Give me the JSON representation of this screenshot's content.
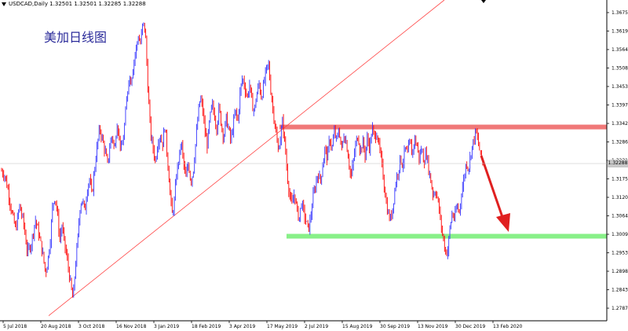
{
  "header": {
    "symbol_line": "USDCAD,Daily  1.32501 1.32501 1.32285 1.32288"
  },
  "title_cn": "美加日线图",
  "current_price": "1.32288",
  "colors": {
    "bull": "#3333ff",
    "bear": "#ff0000",
    "resistance_zone": "#f07878",
    "support_zone": "#88f088",
    "trendline": "#ff4444",
    "arrow": "#e02020"
  },
  "chart_data": {
    "type": "candlestick",
    "y_ticks": [
      "1.36750",
      "1.36195",
      "1.35640",
      "1.35085",
      "1.34530",
      "1.33975",
      "1.33420",
      "1.32865",
      "1.32310",
      "1.31755",
      "1.31200",
      "1.30645",
      "1.30090",
      "1.29535",
      "1.28980",
      "1.28430",
      "1.27875"
    ],
    "x_ticks": [
      "5 Jul 2018",
      "20 Aug 2018",
      "3 Oct 2018",
      "16 Nov 2018",
      "3 Jan 2019",
      "18 Feb 2019",
      "3 Apr 2019",
      "17 May 2019",
      "2 Jul 2019",
      "15 Aug 2019",
      "30 Sep 2019",
      "13 Nov 2019",
      "30 Dec 2019",
      "13 Feb 2020"
    ],
    "ylim": [
      1.276,
      1.369
    ],
    "close_path": [
      [
        0,
        1.321
      ],
      [
        6,
        1.319
      ],
      [
        10,
        1.315
      ],
      [
        15,
        1.308
      ],
      [
        20,
        1.303
      ],
      [
        25,
        1.31
      ],
      [
        30,
        1.305
      ],
      [
        35,
        1.296
      ],
      [
        40,
        1.299
      ],
      [
        45,
        1.306
      ],
      [
        50,
        1.301
      ],
      [
        55,
        1.295
      ],
      [
        58,
        1.29
      ],
      [
        61,
        1.294
      ],
      [
        64,
        1.3
      ],
      [
        67,
        1.31
      ],
      [
        70,
        1.313
      ],
      [
        73,
        1.308
      ],
      [
        76,
        1.3
      ],
      [
        79,
        1.304
      ],
      [
        82,
        1.299
      ],
      [
        85,
        1.295
      ],
      [
        88,
        1.29
      ],
      [
        91,
        1.285
      ],
      [
        93,
        1.282
      ],
      [
        96,
        1.292
      ],
      [
        99,
        1.3
      ],
      [
        102,
        1.31
      ],
      [
        105,
        1.312
      ],
      [
        108,
        1.308
      ],
      [
        111,
        1.315
      ],
      [
        114,
        1.318
      ],
      [
        117,
        1.313
      ],
      [
        120,
        1.32
      ],
      [
        124,
        1.328
      ],
      [
        127,
        1.333
      ],
      [
        130,
        1.33
      ],
      [
        134,
        1.326
      ],
      [
        137,
        1.322
      ],
      [
        140,
        1.328
      ],
      [
        143,
        1.331
      ],
      [
        146,
        1.326
      ],
      [
        149,
        1.335
      ],
      [
        152,
        1.33
      ],
      [
        155,
        1.326
      ],
      [
        158,
        1.332
      ],
      [
        161,
        1.34
      ],
      [
        164,
        1.348
      ],
      [
        167,
        1.347
      ],
      [
        170,
        1.352
      ],
      [
        173,
        1.356
      ],
      [
        176,
        1.36
      ],
      [
        179,
        1.358
      ],
      [
        182,
        1.364
      ],
      [
        185,
        1.362
      ],
      [
        187,
        1.352
      ],
      [
        189,
        1.342
      ],
      [
        192,
        1.331
      ],
      [
        195,
        1.327
      ],
      [
        198,
        1.323
      ],
      [
        201,
        1.329
      ],
      [
        204,
        1.331
      ],
      [
        207,
        1.328
      ],
      [
        210,
        1.334
      ],
      [
        213,
        1.325
      ],
      [
        216,
        1.316
      ],
      [
        219,
        1.307
      ],
      [
        222,
        1.311
      ],
      [
        225,
        1.32
      ],
      [
        228,
        1.324
      ],
      [
        231,
        1.329
      ],
      [
        234,
        1.322
      ],
      [
        237,
        1.318
      ],
      [
        240,
        1.323
      ],
      [
        243,
        1.317
      ],
      [
        246,
        1.32
      ],
      [
        249,
        1.328
      ],
      [
        252,
        1.336
      ],
      [
        255,
        1.342
      ],
      [
        258,
        1.339
      ],
      [
        261,
        1.332
      ],
      [
        264,
        1.328
      ],
      [
        267,
        1.335
      ],
      [
        270,
        1.34
      ],
      [
        273,
        1.337
      ],
      [
        276,
        1.333
      ],
      [
        279,
        1.339
      ],
      [
        282,
        1.334
      ],
      [
        285,
        1.33
      ],
      [
        288,
        1.336
      ],
      [
        291,
        1.333
      ],
      [
        294,
        1.329
      ],
      [
        297,
        1.334
      ],
      [
        300,
        1.338
      ],
      [
        303,
        1.335
      ],
      [
        306,
        1.344
      ],
      [
        309,
        1.348
      ],
      [
        312,
        1.345
      ],
      [
        315,
        1.342
      ],
      [
        318,
        1.346
      ],
      [
        321,
        1.34
      ],
      [
        324,
        1.338
      ],
      [
        327,
        1.343
      ],
      [
        330,
        1.346
      ],
      [
        333,
        1.342
      ],
      [
        336,
        1.346
      ],
      [
        339,
        1.35
      ],
      [
        342,
        1.352
      ],
      [
        345,
        1.344
      ],
      [
        348,
        1.338
      ],
      [
        351,
        1.333
      ],
      [
        354,
        1.326
      ],
      [
        357,
        1.33
      ],
      [
        360,
        1.335
      ],
      [
        363,
        1.328
      ],
      [
        366,
        1.319
      ],
      [
        369,
        1.313
      ],
      [
        372,
        1.31
      ],
      [
        375,
        1.314
      ],
      [
        378,
        1.309
      ],
      [
        381,
        1.306
      ],
      [
        384,
        1.311
      ],
      [
        387,
        1.308
      ],
      [
        390,
        1.305
      ],
      [
        393,
        1.303
      ],
      [
        396,
        1.307
      ],
      [
        399,
        1.313
      ],
      [
        402,
        1.316
      ],
      [
        405,
        1.32
      ],
      [
        408,
        1.317
      ],
      [
        411,
        1.322
      ],
      [
        414,
        1.327
      ],
      [
        417,
        1.324
      ],
      [
        420,
        1.33
      ],
      [
        423,
        1.327
      ],
      [
        426,
        1.332
      ],
      [
        429,
        1.329
      ],
      [
        432,
        1.333
      ],
      [
        435,
        1.326
      ],
      [
        438,
        1.331
      ],
      [
        441,
        1.329
      ],
      [
        444,
        1.324
      ],
      [
        447,
        1.318
      ],
      [
        450,
        1.323
      ],
      [
        453,
        1.328
      ],
      [
        456,
        1.331
      ],
      [
        459,
        1.326
      ],
      [
        462,
        1.329
      ],
      [
        465,
        1.325
      ],
      [
        468,
        1.33
      ],
      [
        471,
        1.327
      ],
      [
        474,
        1.333
      ],
      [
        477,
        1.33
      ],
      [
        480,
        1.332
      ],
      [
        483,
        1.327
      ],
      [
        486,
        1.323
      ],
      [
        489,
        1.317
      ],
      [
        492,
        1.311
      ],
      [
        495,
        1.307
      ],
      [
        498,
        1.306
      ],
      [
        501,
        1.311
      ],
      [
        504,
        1.317
      ],
      [
        507,
        1.32
      ],
      [
        510,
        1.324
      ],
      [
        513,
        1.322
      ],
      [
        516,
        1.327
      ],
      [
        519,
        1.325
      ],
      [
        522,
        1.329
      ],
      [
        525,
        1.325
      ],
      [
        528,
        1.33
      ],
      [
        531,
        1.328
      ],
      [
        534,
        1.324
      ],
      [
        537,
        1.327
      ],
      [
        540,
        1.323
      ],
      [
        543,
        1.326
      ],
      [
        546,
        1.321
      ],
      [
        549,
        1.317
      ],
      [
        552,
        1.313
      ],
      [
        555,
        1.315
      ],
      [
        558,
        1.311
      ],
      [
        561,
        1.306
      ],
      [
        564,
        1.301
      ],
      [
        567,
        1.297
      ],
      [
        570,
        1.296
      ],
      [
        573,
        1.303
      ],
      [
        576,
        1.308
      ],
      [
        579,
        1.306
      ],
      [
        582,
        1.31
      ],
      [
        585,
        1.308
      ],
      [
        588,
        1.314
      ],
      [
        591,
        1.318
      ],
      [
        594,
        1.323
      ],
      [
        597,
        1.321
      ],
      [
        600,
        1.326
      ],
      [
        603,
        1.329
      ],
      [
        606,
        1.332
      ],
      [
        609,
        1.329
      ],
      [
        612,
        1.325
      ],
      [
        615,
        1.3229
      ]
    ],
    "annotations": {
      "resistance_zone": [
        1.3328,
        1.334
      ],
      "support_zone": [
        1.3007,
        1.3017
      ],
      "trendline": [
        [
          "20 Aug 2018",
          1.281
        ],
        [
          "17 May 2019",
          1.331
        ]
      ],
      "arrow": [
        [
          1.3275,
          "13 Feb 2020"
        ],
        [
          1.302,
          "after 13 Feb 2020"
        ]
      ]
    }
  }
}
